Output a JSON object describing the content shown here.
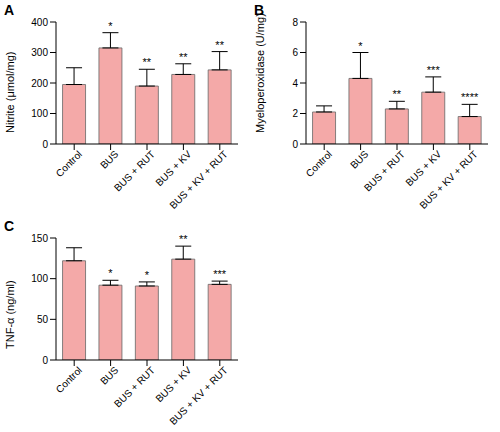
{
  "chart_data": [
    {
      "type": "bar",
      "title": "A",
      "y_label": "Nitrite (μmol/mg)",
      "categories": [
        "Control",
        "BUS",
        "BUS + RUT",
        "BUS + KV",
        "BUS + KV + RUT"
      ],
      "values": [
        195,
        315,
        190,
        228,
        243
      ],
      "errors": [
        55,
        50,
        55,
        35,
        60
      ],
      "annotations": [
        null,
        "*",
        "**",
        "**",
        "**"
      ],
      "color": "#f4a9a8",
      "ylim": [
        0,
        400
      ],
      "yticks": [
        0,
        100,
        200,
        300,
        400
      ],
      "grid": false
    },
    {
      "type": "bar",
      "title": "B",
      "y_label": "Myeloperoxidase (U/mg)",
      "categories": [
        "Control",
        "BUS",
        "BUS + RUT",
        "BUS + KV",
        "BUS + KV + RUT"
      ],
      "values": [
        2.1,
        4.3,
        2.3,
        3.4,
        1.8
      ],
      "errors": [
        0.4,
        1.7,
        0.5,
        1.0,
        0.8
      ],
      "annotations": [
        null,
        "*",
        "**",
        "***",
        "****"
      ],
      "color": "#f4a9a8",
      "ylim": [
        0,
        8
      ],
      "yticks": [
        0,
        2,
        4,
        6,
        8
      ],
      "grid": false
    },
    {
      "type": "bar",
      "title": "C",
      "y_label": "TNF-α (ng/ml)",
      "categories": [
        "Control",
        "BUS",
        "BUS + RUT",
        "BUS + KV",
        "BUS + KV + RUT"
      ],
      "values": [
        122,
        92,
        91,
        124,
        93
      ],
      "errors": [
        16,
        6,
        5,
        16,
        4
      ],
      "annotations": [
        null,
        "*",
        "*",
        "**",
        "***"
      ],
      "color": "#f4a9a8",
      "ylim": [
        0,
        150
      ],
      "yticks": [
        0,
        50,
        100,
        150
      ],
      "grid": false
    }
  ]
}
